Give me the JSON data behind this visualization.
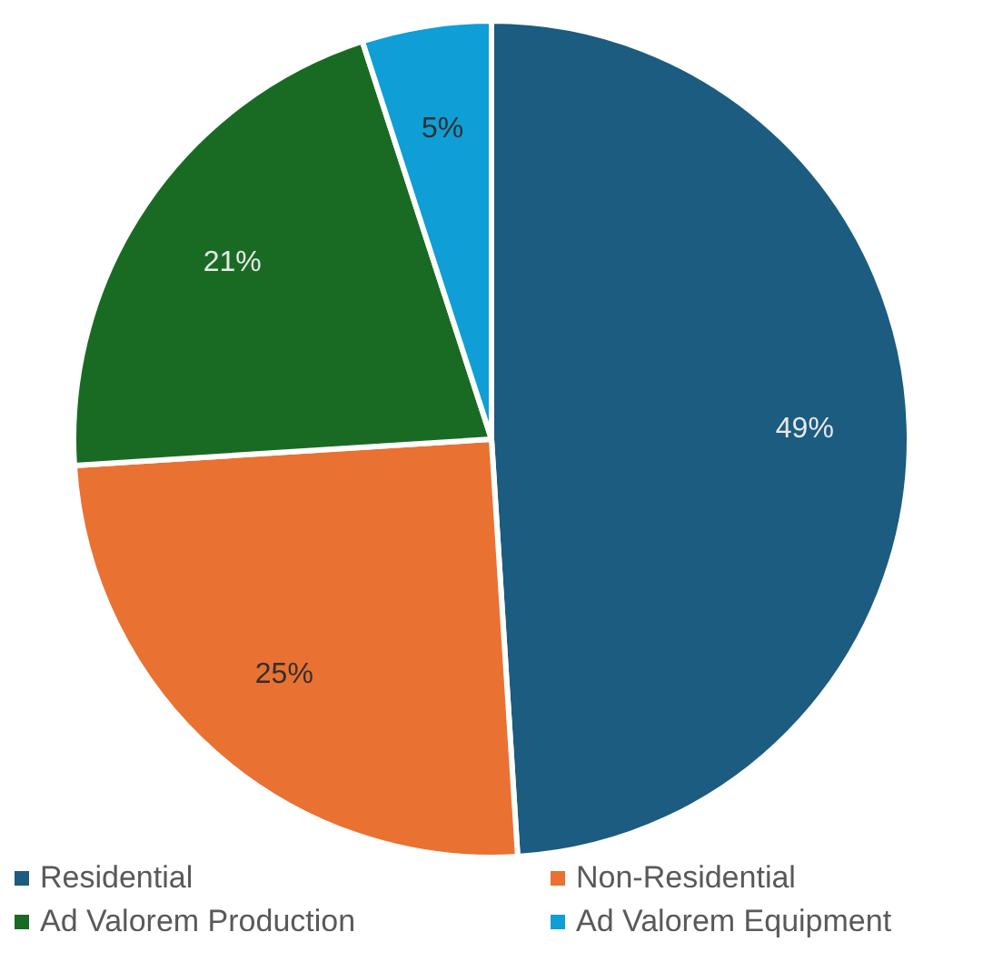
{
  "chart_data": {
    "type": "pie",
    "categories": [
      "Residential",
      "Non-Residential",
      "Ad Valorem Production",
      "Ad Valorem Equipment"
    ],
    "values": [
      49,
      25,
      21,
      5
    ],
    "colors": [
      "#1b5c80",
      "#e97132",
      "#196b24",
      "#0f9ed5"
    ],
    "value_labels": [
      "49%",
      "25%",
      "21%",
      "5%"
    ],
    "legend": "bottom"
  }
}
